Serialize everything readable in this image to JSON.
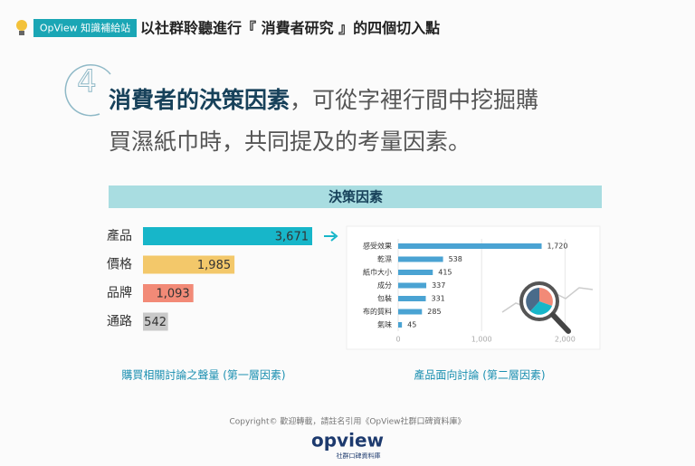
{
  "header": {
    "tag": "OpView 知識補給站",
    "title": "以社群聆聽進行『 消費者研究 』的四個切入點"
  },
  "step": "4",
  "headline": {
    "bold": "消費者的決策因素",
    "rest": "，可從字裡行間中挖掘購",
    "line2": "買濕紙巾時，共同提及的考量因素。"
  },
  "section": "決策因素",
  "chart_data": [
    {
      "type": "hbar",
      "caption": "購買相關討論之聲量 (第一層因素)",
      "categories": [
        "產品",
        "價格",
        "品牌",
        "通路"
      ],
      "values": [
        3671,
        1985,
        1093,
        542
      ],
      "value_labels": [
        "3,671",
        "1,985",
        "1,093",
        "542"
      ],
      "colors": [
        "#17b6c9",
        "#f3c86a",
        "#f28a77",
        "#c9c9c9"
      ]
    },
    {
      "type": "hbar-axis",
      "caption": "產品面向討論 (第二層因素)",
      "categories": [
        "感受效果",
        "乾濕",
        "紙巾大小",
        "成分",
        "包裝",
        "布的質料",
        "氣味"
      ],
      "values": [
        1720,
        538,
        415,
        337,
        331,
        285,
        45
      ],
      "value_labels": [
        "1,720",
        "538",
        "415",
        "337",
        "331",
        "285",
        "45"
      ],
      "color": "#4aa3d3",
      "xlim": [
        0,
        2300
      ],
      "xticks": [
        0,
        {
          "value": 1000,
          "label": "1,000"
        },
        {
          "value": 2000,
          "label": "2,000"
        }
      ],
      "grid": true
    }
  ],
  "footer": {
    "copyright": "Copyright© 歡迎轉載，請註名引用《OpView社群口碑資料庫》",
    "logo": "opview",
    "logo_sub": "社群口碑資料庫"
  }
}
